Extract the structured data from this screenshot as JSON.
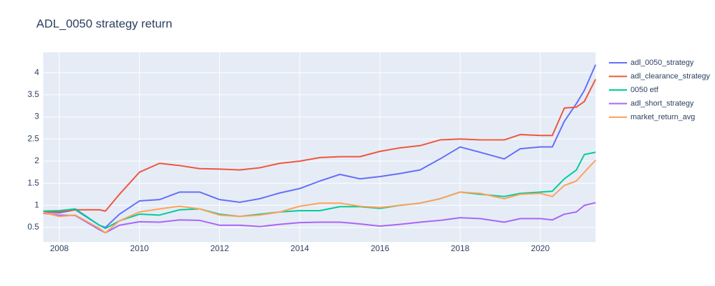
{
  "chart_data": {
    "type": "line",
    "title": "ADL_0050 strategy return",
    "x": [
      2007.6,
      2008.0,
      2008.4,
      2009.0,
      2009.15,
      2009.5,
      2010.0,
      2010.5,
      2011.0,
      2011.5,
      2012.0,
      2012.5,
      2013.0,
      2013.5,
      2014.0,
      2014.5,
      2015.0,
      2015.5,
      2016.0,
      2016.5,
      2017.0,
      2017.5,
      2018.0,
      2018.5,
      2019.1,
      2019.5,
      2020.0,
      2020.3,
      2020.6,
      2020.9,
      2021.1,
      2021.38
    ],
    "series": [
      {
        "name": "adl_0050_strategy",
        "color": "#636efa",
        "values": [
          0.85,
          0.83,
          0.9,
          0.55,
          0.5,
          0.8,
          1.1,
          1.13,
          1.3,
          1.3,
          1.13,
          1.07,
          1.15,
          1.28,
          1.38,
          1.55,
          1.7,
          1.6,
          1.65,
          1.72,
          1.8,
          2.05,
          2.32,
          2.2,
          2.05,
          2.28,
          2.32,
          2.32,
          2.9,
          3.3,
          3.6,
          4.18
        ]
      },
      {
        "name": "adl_clearance_strategy",
        "color": "#EF553B",
        "values": [
          0.85,
          0.85,
          0.9,
          0.9,
          0.87,
          1.25,
          1.75,
          1.95,
          1.9,
          1.83,
          1.82,
          1.8,
          1.85,
          1.95,
          2.0,
          2.08,
          2.1,
          2.1,
          2.22,
          2.3,
          2.35,
          2.48,
          2.5,
          2.48,
          2.48,
          2.6,
          2.58,
          2.58,
          3.2,
          3.22,
          3.35,
          3.85
        ]
      },
      {
        "name": "0050 etf",
        "color": "#00cc96",
        "values": [
          0.87,
          0.88,
          0.92,
          0.55,
          0.48,
          0.65,
          0.8,
          0.78,
          0.9,
          0.92,
          0.8,
          0.75,
          0.8,
          0.85,
          0.88,
          0.88,
          0.97,
          0.97,
          0.93,
          1.0,
          1.05,
          1.15,
          1.3,
          1.25,
          1.2,
          1.27,
          1.3,
          1.32,
          1.6,
          1.8,
          2.15,
          2.2
        ]
      },
      {
        "name": "adl_short_strategy",
        "color": "#ab63fa",
        "values": [
          0.82,
          0.78,
          0.77,
          0.45,
          0.38,
          0.55,
          0.63,
          0.62,
          0.67,
          0.66,
          0.55,
          0.55,
          0.52,
          0.57,
          0.61,
          0.62,
          0.62,
          0.58,
          0.53,
          0.57,
          0.62,
          0.66,
          0.72,
          0.7,
          0.62,
          0.7,
          0.7,
          0.67,
          0.8,
          0.85,
          1.0,
          1.06
        ]
      },
      {
        "name": "market_return_avg",
        "color": "#FFA15A",
        "values": [
          0.84,
          0.75,
          0.78,
          0.48,
          0.38,
          0.65,
          0.85,
          0.92,
          0.98,
          0.92,
          0.78,
          0.75,
          0.78,
          0.85,
          0.98,
          1.05,
          1.05,
          0.98,
          0.95,
          1.0,
          1.05,
          1.15,
          1.3,
          1.27,
          1.15,
          1.25,
          1.27,
          1.2,
          1.45,
          1.55,
          1.75,
          2.02
        ]
      }
    ],
    "xlim": [
      2007.6,
      2021.38
    ],
    "xticks": [
      2008,
      2010,
      2012,
      2014,
      2016,
      2018,
      2020
    ],
    "ylim": [
      0.17,
      4.46
    ],
    "yticks": [
      0.5,
      1,
      1.5,
      2,
      2.5,
      3,
      3.5,
      4
    ],
    "grid": true
  }
}
